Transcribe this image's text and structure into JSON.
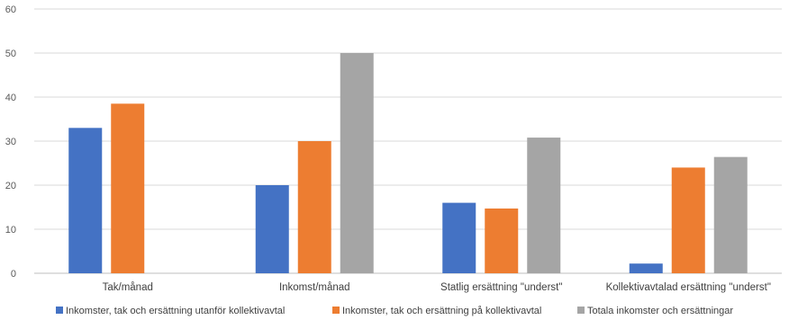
{
  "chart_data": {
    "type": "bar",
    "categories": [
      "Tak/månad",
      "Inkomst/månad",
      "Statlig ersättning \"underst\"",
      "Kollektivavtalad ersättning \"underst\""
    ],
    "series": [
      {
        "name": "Inkomster, tak och ersättning utanför kollektivavtal",
        "color": "#4472c4",
        "values": [
          33,
          20,
          16,
          2.2
        ]
      },
      {
        "name": "Inkomster, tak och ersättning på kollektivavtal",
        "color": "#ed7d31",
        "values": [
          38.5,
          30,
          14.7,
          24
        ]
      },
      {
        "name": "Totala inkomster och ersättningar",
        "color": "#a5a5a5",
        "values": [
          null,
          50,
          30.8,
          26.4
        ]
      }
    ],
    "y_ticks": [
      "0",
      "10",
      "20",
      "30",
      "40",
      "50",
      "60"
    ],
    "ylim": [
      0,
      60
    ],
    "grid": true,
    "legend_position": "bottom",
    "title": "",
    "xlabel": "",
    "ylabel": ""
  }
}
